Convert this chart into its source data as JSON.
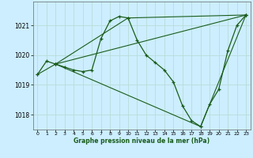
{
  "xlabel": "Graphe pression niveau de la mer (hPa)",
  "background_color": "#cceeff",
  "grid_color": "#b8ddd8",
  "line_color": "#1a5c1a",
  "xlim": [
    -0.5,
    23.5
  ],
  "ylim": [
    1017.5,
    1021.8
  ],
  "xticks": [
    0,
    1,
    2,
    3,
    4,
    5,
    6,
    7,
    8,
    9,
    10,
    11,
    12,
    13,
    14,
    15,
    16,
    17,
    18,
    19,
    20,
    21,
    22,
    23
  ],
  "yticks": [
    1018,
    1019,
    1020,
    1021
  ],
  "series": [
    {
      "x": [
        0,
        1,
        2,
        3,
        4,
        5,
        6,
        7,
        8,
        9,
        10,
        11,
        12,
        13,
        14,
        15,
        16,
        17,
        18,
        19,
        20,
        21,
        22,
        23
      ],
      "y": [
        1019.35,
        1019.8,
        1019.7,
        1019.6,
        1019.5,
        1019.45,
        1019.5,
        1020.55,
        1021.15,
        1021.3,
        1021.25,
        1020.5,
        1020.0,
        1019.75,
        1019.5,
        1019.1,
        1018.3,
        1017.8,
        1017.6,
        1018.35,
        1018.85,
        1020.15,
        1021.0,
        1021.35
      ]
    },
    {
      "x": [
        0,
        2,
        23
      ],
      "y": [
        1019.35,
        1019.7,
        1021.35
      ]
    },
    {
      "x": [
        2,
        10,
        23
      ],
      "y": [
        1019.7,
        1021.25,
        1021.35
      ]
    },
    {
      "x": [
        2,
        18,
        23
      ],
      "y": [
        1019.7,
        1017.6,
        1021.35
      ]
    }
  ]
}
